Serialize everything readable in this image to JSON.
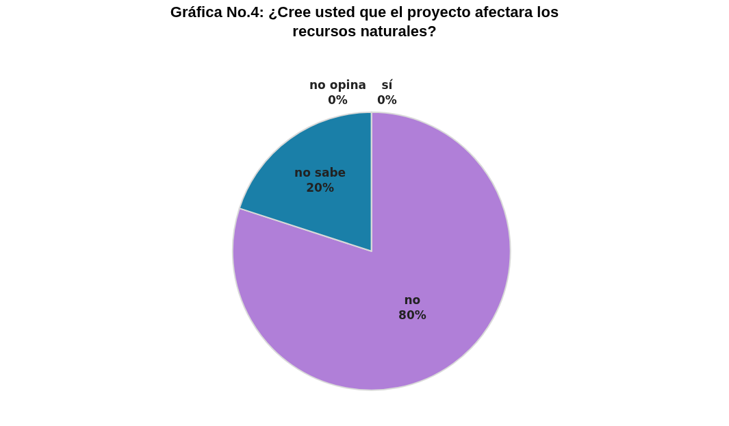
{
  "chart_data": {
    "type": "pie",
    "title": "Gráfica No.4: ¿Cree usted que el proyecto afectara los\nrecursos naturales?",
    "categories": [
      "sí",
      "no",
      "no sabe",
      "no opina"
    ],
    "values": [
      0,
      80,
      20,
      0
    ],
    "colors": [
      "#8a8a8a",
      "#b07fd8",
      "#1a7fa8",
      "#5b9bd5"
    ],
    "value_labels": [
      "0%",
      "80%",
      "20%",
      "0%"
    ],
    "legend": false
  }
}
